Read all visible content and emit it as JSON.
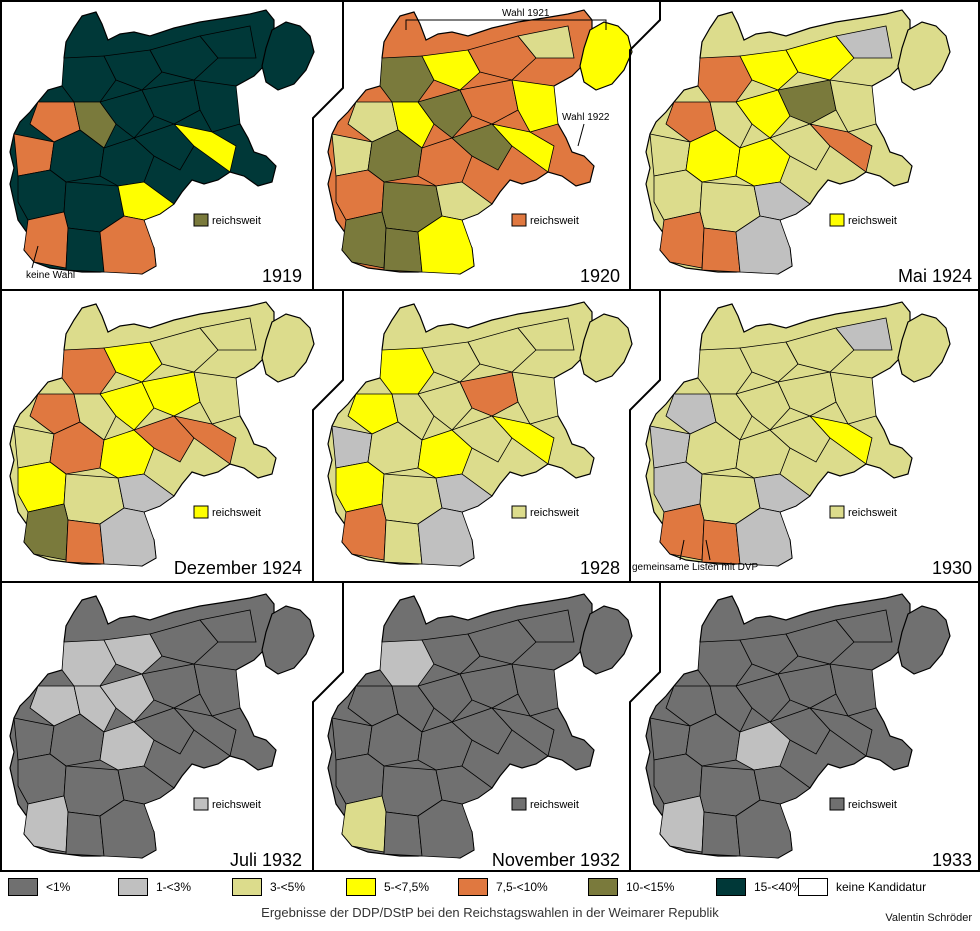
{
  "colors": {
    "lt1": "#707070",
    "1to3": "#c0c0c0",
    "3to5": "#dcdc8c",
    "5to7_5": "#ffff00",
    "7_5to10": "#e07840",
    "10to15": "#7a7a3c",
    "15to40": "#003838",
    "none": "#ffffff"
  },
  "legend": [
    {
      "key": "lt1",
      "label": "<1%"
    },
    {
      "key": "1to3",
      "label": "1-<3%"
    },
    {
      "key": "3to5",
      "label": "3-<5%"
    },
    {
      "key": "5to7_5",
      "label": "5-<7,5%"
    },
    {
      "key": "7_5to10",
      "label": "7,5-<10%"
    },
    {
      "key": "10to15",
      "label": "10-<15%"
    },
    {
      "key": "15to40",
      "label": "15-<40%"
    },
    {
      "key": "none",
      "label": "keine Kandidatur"
    }
  ],
  "panels": [
    {
      "year": "1919",
      "reichsweit": "reichsweit",
      "reich_color": "10to15",
      "base": "15to40",
      "note": "keine Wahl"
    },
    {
      "year": "1920",
      "reichsweit": "reichsweit",
      "reich_color": "7_5to10",
      "base": "7_5to10",
      "note_a": "Wahl 1921",
      "note_b": "Wahl 1922"
    },
    {
      "year": "Mai 1924",
      "reichsweit": "reichsweit",
      "reich_color": "5to7_5",
      "base": "3to5"
    },
    {
      "year": "Dezember 1924",
      "reichsweit": "reichsweit",
      "reich_color": "5to7_5",
      "base": "3to5"
    },
    {
      "year": "1928",
      "reichsweit": "reichsweit",
      "reich_color": "3to5",
      "base": "3to5"
    },
    {
      "year": "1930",
      "reichsweit": "reichsweit",
      "reich_color": "3to5",
      "base": "3to5",
      "note": "gemeinsame Listen mit DVP"
    },
    {
      "year": "Juli 1932",
      "reichsweit": "reichsweit",
      "reich_color": "1to3",
      "base": "lt1"
    },
    {
      "year": "November 1932",
      "reichsweit": "reichsweit",
      "reich_color": "lt1",
      "base": "lt1"
    },
    {
      "year": "1933",
      "reichsweit": "reichsweit",
      "reich_color": "lt1",
      "base": "lt1"
    }
  ],
  "caption": "Ergebnisse der DDP/DStP bei den Reichstagswahlen in der Weimarer Republik",
  "author": "Valentin Schröder"
}
